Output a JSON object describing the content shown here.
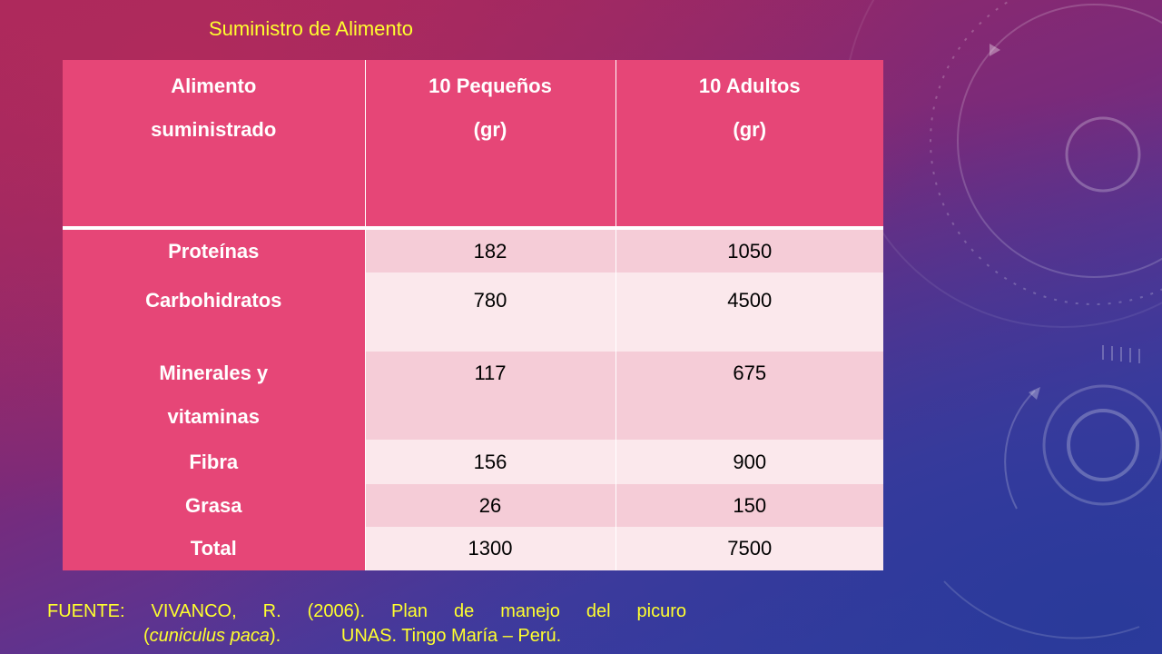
{
  "slide": {
    "title": "Suministro de Alimento"
  },
  "table": {
    "headers": [
      {
        "line1": "Alimento",
        "line2": "suministrado"
      },
      {
        "line1": "10 Pequeños",
        "line2": "(gr)"
      },
      {
        "line1": "10 Adultos",
        "line2": "(gr)"
      }
    ],
    "rows": [
      {
        "food": "Proteínas",
        "small": "182",
        "adult": "1050"
      },
      {
        "food": "Carbohidratos",
        "small": "780",
        "adult": "4500"
      },
      {
        "food_line1": "Minerales y",
        "food_line2": "vitaminas",
        "small": "117",
        "adult": "675"
      },
      {
        "food": "Fibra",
        "small": "156",
        "adult": "900"
      },
      {
        "food": "Grasa",
        "small": "26",
        "adult": "150"
      },
      {
        "food": "Total",
        "small": "1300",
        "adult": "7500"
      }
    ]
  },
  "source": {
    "line1": "FUENTE: VIVANCO, R. (2006). Plan de manejo del picuro",
    "open_paren": "(",
    "species": "cuniculus paca",
    "close_text": ").",
    "institution": "UNAS. Tingo María – Perú."
  },
  "colors": {
    "title": "#ffff2e",
    "header_bg": "#e64677",
    "band_dark": "#f5ccd7",
    "band_light": "#fbe8ec"
  }
}
